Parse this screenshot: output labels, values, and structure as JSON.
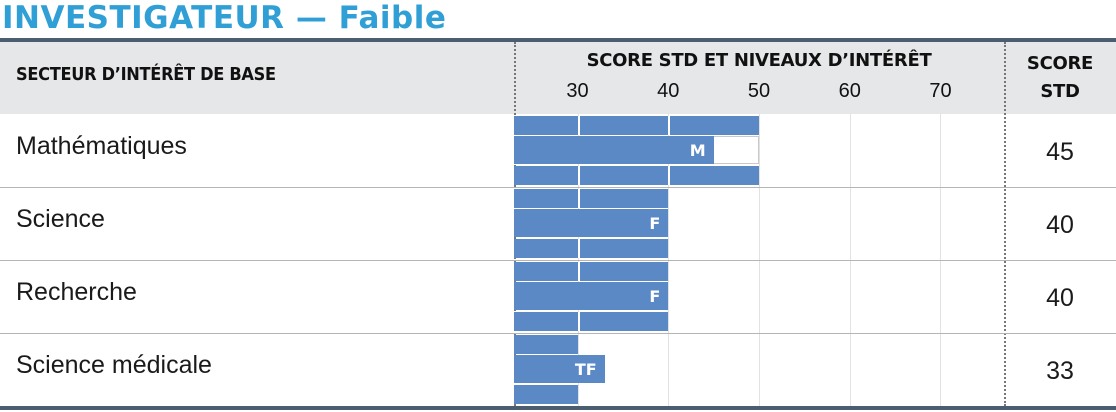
{
  "title": "INVESTIGATEUR — Faible",
  "header": {
    "sector": "SECTEUR D’INTÉRÊT DE BASE",
    "score_levels": "SCORE STD ET NIVEAUX D’INTÉRÊT",
    "score_std_1": "SCORE",
    "score_std_2": "STD"
  },
  "colors": {
    "title": "#2f9fd6",
    "bar": "#5b89c6",
    "header_bg": "#e6e7e9",
    "rule": "#4b5d70"
  },
  "chart_data": {
    "type": "bar",
    "orientation": "horizontal",
    "xlim": [
      23,
      77
    ],
    "ticks": [
      30,
      40,
      50,
      60,
      70
    ],
    "band_divisions": [
      30,
      40
    ],
    "categories": [
      "Mathématiques",
      "Science",
      "Recherche",
      "Science médicale"
    ],
    "values": [
      45,
      40,
      40,
      33
    ],
    "levels": [
      "M",
      "F",
      "F",
      "TF"
    ],
    "band_upper": [
      50,
      40,
      40,
      30
    ]
  }
}
